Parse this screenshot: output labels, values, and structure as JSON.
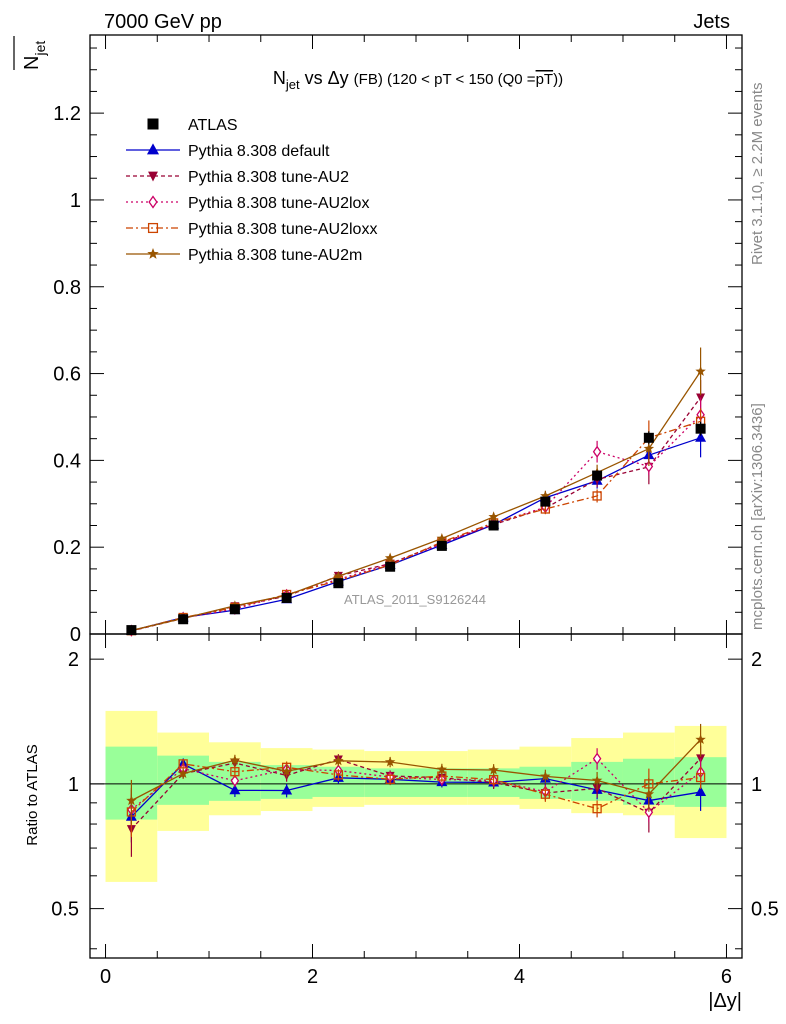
{
  "header": {
    "left": "7000 GeV pp",
    "right": "Jets"
  },
  "side_labels": {
    "rivet": "Rivet 3.1.10, ≥ 2.2M events",
    "mcplots": "mcplots.cern.ch [arXiv:1306.3436]"
  },
  "chart_data": {
    "type": "line",
    "title_parts": {
      "n": "N",
      "n_sub": "jet",
      "mid": " vs Δy ",
      "fb": "(FB)",
      "cut": " (120 < pT < 150 (Q0 =",
      "q0": "pT",
      "close": "))"
    },
    "ylabel_main": {
      "n": "N",
      "sub": "jet"
    },
    "ylabel_ratio": "Ratio to ATLAS",
    "xlabel": "|Δy|",
    "watermark": "ATLAS_2011_S9126244",
    "xlim": [
      -0.15,
      6.15
    ],
    "ylim_main": [
      0,
      1.38
    ],
    "ylim_ratio": [
      0.38,
      2.3
    ],
    "x_ticks": [
      0,
      2,
      4,
      6
    ],
    "x_tick_labels": [
      "0",
      "2",
      "4",
      "6"
    ],
    "y_ticks_main": [
      0,
      0.2,
      0.4,
      0.6,
      0.8,
      1.0,
      1.2
    ],
    "y_tick_labels_main": [
      "0",
      "0.2",
      "0.4",
      "0.6",
      "0.8",
      "1",
      "1.2"
    ],
    "y_ticks_ratio": [
      0.5,
      1,
      2
    ],
    "y_tick_labels_ratio": [
      "0.5",
      "1",
      "2"
    ],
    "bins": [
      [
        0,
        0.5
      ],
      [
        0.5,
        1.0
      ],
      [
        1.0,
        1.5
      ],
      [
        1.5,
        2.0
      ],
      [
        2.0,
        2.5
      ],
      [
        2.5,
        3.0
      ],
      [
        3.0,
        3.5
      ],
      [
        3.5,
        4.0
      ],
      [
        4.0,
        4.5
      ],
      [
        4.5,
        5.0
      ],
      [
        5.0,
        5.5
      ],
      [
        5.5,
        6.0
      ]
    ],
    "x": [
      0.25,
      0.75,
      1.25,
      1.75,
      2.25,
      2.75,
      3.25,
      3.75,
      4.25,
      4.75,
      5.25,
      5.75
    ],
    "band_green": [
      [
        0.82,
        1.23
      ],
      [
        0.89,
        1.17
      ],
      [
        0.91,
        1.13
      ],
      [
        0.92,
        1.11
      ],
      [
        0.93,
        1.1
      ],
      [
        0.93,
        1.09
      ],
      [
        0.93,
        1.09
      ],
      [
        0.93,
        1.09
      ],
      [
        0.92,
        1.1
      ],
      [
        0.91,
        1.13
      ],
      [
        0.89,
        1.15
      ],
      [
        0.88,
        1.16
      ]
    ],
    "band_yellow": [
      [
        0.58,
        1.5
      ],
      [
        0.77,
        1.33
      ],
      [
        0.84,
        1.26
      ],
      [
        0.86,
        1.22
      ],
      [
        0.88,
        1.21
      ],
      [
        0.89,
        1.2
      ],
      [
        0.89,
        1.2
      ],
      [
        0.89,
        1.21
      ],
      [
        0.87,
        1.23
      ],
      [
        0.85,
        1.29
      ],
      [
        0.84,
        1.33
      ],
      [
        0.74,
        1.38
      ]
    ],
    "data": {
      "name": "ATLAS",
      "y": [
        0.009,
        0.034,
        0.057,
        0.083,
        0.117,
        0.155,
        0.203,
        0.25,
        0.305,
        0.365,
        0.452,
        0.473
      ],
      "err": [
        0.001,
        0.002,
        0.003,
        0.004,
        0.005,
        0.006,
        0.007,
        0.008,
        0.01,
        0.012,
        0.015,
        0.016
      ]
    },
    "series": [
      {
        "name": "Pythia 8.308 default",
        "color": "#0000cc",
        "dash": "",
        "marker": "triangle-up",
        "y": [
          0.0075,
          0.038,
          0.055,
          0.08,
          0.121,
          0.159,
          0.205,
          0.252,
          0.314,
          0.353,
          0.412,
          0.452
        ],
        "err": [
          0.001,
          0.001,
          0.002,
          0.003,
          0.004,
          0.005,
          0.006,
          0.008,
          0.012,
          0.018,
          0.025,
          0.045
        ]
      },
      {
        "name": "Pythia 8.308 tune-AU2",
        "color": "#990033",
        "dash": "4,3",
        "marker": "triangle-down",
        "y": [
          0.007,
          0.036,
          0.064,
          0.087,
          0.134,
          0.162,
          0.21,
          0.252,
          0.29,
          0.356,
          0.385,
          0.545
        ],
        "err": [
          0.001,
          0.001,
          0.002,
          0.003,
          0.004,
          0.005,
          0.007,
          0.009,
          0.012,
          0.018,
          0.04,
          0.04
        ]
      },
      {
        "name": "Pythia 8.308 tune-AU2lox",
        "color": "#cc0066",
        "dash": "2,3",
        "marker": "diamond-open",
        "y": [
          0.0078,
          0.037,
          0.058,
          0.09,
          0.126,
          0.161,
          0.208,
          0.255,
          0.292,
          0.42,
          0.386,
          0.505
        ],
        "err": [
          0.001,
          0.001,
          0.002,
          0.003,
          0.004,
          0.005,
          0.007,
          0.009,
          0.012,
          0.025,
          0.02,
          0.04
        ]
      },
      {
        "name": "Pythia 8.308 tune-AU2loxx",
        "color": "#cc4400",
        "dash": "7,3,2,3",
        "marker": "square-open",
        "y": [
          0.0077,
          0.038,
          0.061,
          0.091,
          0.123,
          0.159,
          0.212,
          0.256,
          0.288,
          0.318,
          0.452,
          0.49
        ],
        "err": [
          0.001,
          0.001,
          0.002,
          0.003,
          0.004,
          0.005,
          0.007,
          0.009,
          0.012,
          0.015,
          0.04,
          0.03
        ]
      },
      {
        "name": "Pythia 8.308 tune-AU2m",
        "color": "#995500",
        "dash": "",
        "marker": "star",
        "y": [
          0.0082,
          0.036,
          0.065,
          0.089,
          0.133,
          0.175,
          0.22,
          0.27,
          0.318,
          0.372,
          0.427,
          0.605
        ],
        "err": [
          0.001,
          0.001,
          0.002,
          0.003,
          0.004,
          0.005,
          0.007,
          0.009,
          0.012,
          0.018,
          0.04,
          0.055
        ]
      }
    ]
  }
}
